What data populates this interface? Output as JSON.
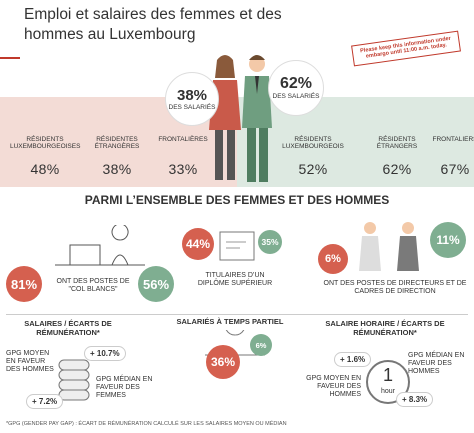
{
  "header": {
    "title": "Emploi et salaires des femmes et des hommes au Luxembourg",
    "embargo": "Please keep this information under embargo until 11:00 a.m. today."
  },
  "share": {
    "women": {
      "value": "38%",
      "label": "DES SALARIÉS"
    },
    "men": {
      "value": "62%",
      "label": "DES SALARIÉS"
    }
  },
  "residence": {
    "women": [
      {
        "label": "RÉSIDENTS LUXEMBOURGEOISES",
        "value": "48%"
      },
      {
        "label": "RÉSIDENTES ÉTRANGÈRES",
        "value": "38%"
      },
      {
        "label": "FRONTALIÈRES",
        "value": "33%"
      }
    ],
    "men": [
      {
        "label": "RÉSIDENTS LUXEMBOURGEOIS",
        "value": "52%"
      },
      {
        "label": "RÉSIDENTS ÉTRANGERS",
        "value": "62%"
      },
      {
        "label": "FRONTALIERS",
        "value": "67%"
      }
    ]
  },
  "section_title": "PARMI L’ENSEMBLE DES FEMMES ET DES HOMMES",
  "white_collar": {
    "women": "81%",
    "label": "ONT DES POSTES DE \"COL BLANCS\"",
    "men": "56%"
  },
  "diploma": {
    "women": "44%",
    "men": "35%",
    "label": "TITULAIRES D’UN DIPLÔME SUPÉRIEUR"
  },
  "directors": {
    "women": "6%",
    "men": "11%",
    "label": "ONT DES POSTES DE DIRECTEURS ET DE CADRES DE DIRECTION"
  },
  "salaries": {
    "title": "Salaires / écarts de rémunération*",
    "mean_label": "GPG MOYEN EN FAVEUR DES HOMMES",
    "mean_value": "+ 10.7%",
    "median_label": "GPG MÉDIAN EN FAVEUR DES FEMMES",
    "median_value": "+ 7.2%"
  },
  "part_time": {
    "title": "SALARIÉS À TEMPS PARTIEL",
    "women": "36%",
    "men": "6%"
  },
  "hourly": {
    "title": "SALAIRE HORAIRE / ÉCARTS DE RÉMUNÉRATION*",
    "median_value": "+ 1.6%",
    "median_label": "GPG MÉDIAN EN FAVEUR DES HOMMES",
    "mean_label": "GPG MOYEN EN FAVEUR DES HOMMES",
    "mean_value": "+ 8.3%",
    "clock_number": "1",
    "clock_unit": "hour"
  },
  "footnote": "*GPG (Gender Pay Gap) : écart de rémunération calculé sur les salaires moyen ou médian"
}
